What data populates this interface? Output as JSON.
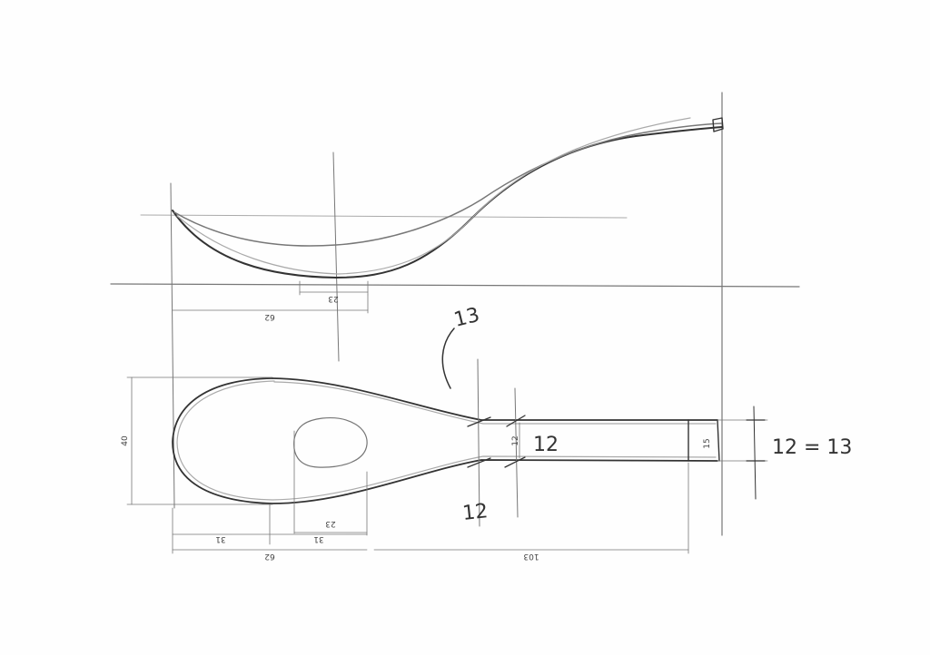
{
  "drawing": {
    "side_view": {
      "dims": {
        "bowl_base": "23",
        "bowl_length": "62"
      }
    },
    "top_view": {
      "dims": {
        "width": "40",
        "hole": "23",
        "first_half": "31",
        "second_half": "31",
        "bowl_length": "62",
        "handle_length": "103",
        "neck_width": "12",
        "end_width": "15"
      },
      "notes": {
        "neck_note": "12",
        "lower_note": "12",
        "upper_note": "13",
        "end_note": "12 = 13"
      }
    }
  }
}
